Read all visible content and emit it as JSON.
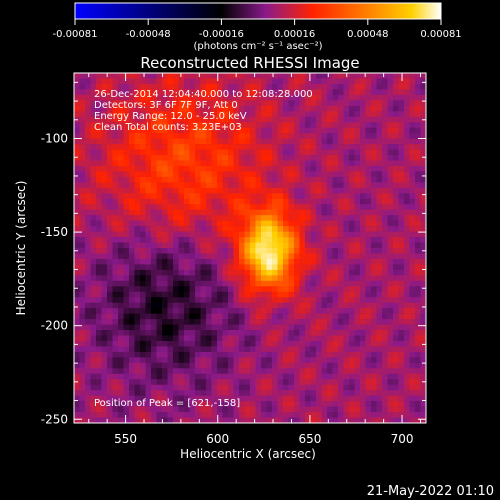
{
  "colorbar": {
    "ticks": [
      "-0.00081",
      "-0.00048",
      "-0.00016",
      "0.00016",
      "0.00048",
      "0.00081"
    ],
    "units": "(photons cm⁻² s⁻¹ asec⁻²)",
    "colors": [
      "#0000ff",
      "#000000",
      "#8a1a8a",
      "#ff2200",
      "#ff8000",
      "#ffd000",
      "#ffffff"
    ]
  },
  "title": "Reconstructed RHESSI Image",
  "annotations": {
    "time_range": "26-Dec-2014 12:04:40.000 to 12:08:28.000",
    "detectors": "Detectors: 3F 6F 7F 9F, Att 0",
    "energy": "Energy Range: 12.0 - 25.0 keV",
    "method_counts": "Clean    Total counts: 3.23E+03",
    "peak": "Position of Peak = [621,-158]"
  },
  "axes": {
    "xlabel": "Heliocentric X (arcsec)",
    "ylabel": "Heliocentric Y (arcsec)",
    "xticks": [
      "550",
      "600",
      "650",
      "700"
    ],
    "yticks": [
      "-100",
      "-150",
      "-200",
      "-250"
    ],
    "xlim": [
      522,
      713
    ],
    "ylim": [
      -252,
      -65
    ]
  },
  "peak_position": [
    621,
    -158
  ],
  "footer_date": "21-May-2022 01:10"
}
